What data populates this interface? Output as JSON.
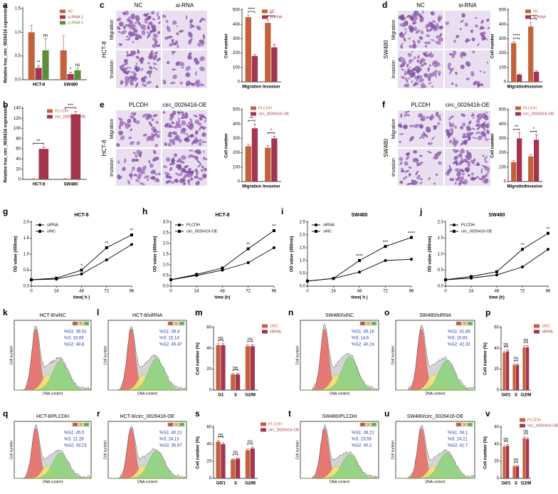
{
  "chart_data": [
    {
      "type": "bar",
      "label": "a",
      "ylabel": "Relative hsa_circ_0026416 expression",
      "categories": [
        "HCT-8",
        "SW480"
      ],
      "series": [
        {
          "name": "NC",
          "color": "#c2623c",
          "values": [
            1.0,
            0.62
          ],
          "errors": [
            0.15,
            0.3
          ]
        },
        {
          "name": "si-RNA 1",
          "color": "#a3354e",
          "values": [
            0.25,
            0.12
          ],
          "errors": [
            0.05,
            0.04
          ]
        },
        {
          "name": "si-RNA 2",
          "color": "#5c8c3c",
          "values": [
            0.62,
            0.2
          ],
          "errors": [
            0.25,
            0.05
          ]
        }
      ],
      "ylim": [
        0,
        1.5
      ],
      "yticks": [
        {
          "value": 0,
          "label": "0.0"
        },
        0.5,
        {
          "value": 1,
          "label": "1.0"
        },
        1.5
      ],
      "annotations": [
        "**",
        "ns",
        "*",
        "ns"
      ]
    },
    {
      "type": "bar",
      "label": "b",
      "ylabel": "Relative hsa_circ_0026416 expression",
      "categories": [
        "HCT-8",
        "SW480"
      ],
      "series": [
        {
          "name": "PLCDH",
          "color": "#c2623c",
          "values": [
            1,
            1
          ],
          "errors": [
            0.5,
            0.5
          ]
        },
        {
          "name": "circ_0026416-OE",
          "color": "#a3354e",
          "values": [
            60,
            128
          ],
          "errors": [
            4,
            6
          ]
        }
      ],
      "ylim": [
        0,
        140
      ],
      "yticks": [
        0,
        20,
        40,
        60,
        80,
        100,
        120,
        140
      ],
      "annotations": [
        "**",
        "***"
      ]
    },
    {
      "type": "micrograph",
      "label": "c",
      "columns": [
        "NC",
        "si-RNA"
      ],
      "rows": [
        "Migration",
        "Invasion"
      ],
      "cell_line": "HCT-8"
    },
    {
      "type": "bar",
      "ylabel": "Cell number",
      "categories": [
        "Migration",
        "Invasion"
      ],
      "series": [
        {
          "name": "NC",
          "color": "#c2623c",
          "values": [
            450,
            410
          ],
          "errors": [
            15,
            25
          ]
        },
        {
          "name": "si-RNA",
          "color": "#a3354e",
          "values": [
            180,
            240
          ],
          "errors": [
            10,
            20
          ]
        }
      ],
      "ylim": [
        0,
        500
      ],
      "yticks": [
        0,
        100,
        200,
        300,
        400,
        500
      ],
      "annotations": [
        "****",
        "**"
      ]
    },
    {
      "type": "micrograph",
      "label": "d",
      "columns": [
        "NC",
        "si-RNA"
      ],
      "rows": [
        "Migration",
        "Invasion"
      ],
      "cell_line": "SW480"
    },
    {
      "type": "bar",
      "ylabel": "Cell number",
      "categories": [
        "Migration",
        "Invasion"
      ],
      "series": [
        {
          "name": "NC",
          "color": "#c2623c",
          "values": [
            270,
            385
          ],
          "errors": [
            10,
            30
          ]
        },
        {
          "name": "si-RNA",
          "color": "#a3354e",
          "values": [
            50,
            70
          ],
          "errors": [
            5,
            8
          ]
        }
      ],
      "ylim": [
        0,
        500
      ],
      "yticks": [
        0,
        100,
        200,
        300,
        400,
        500
      ],
      "annotations": [
        "****",
        "****"
      ]
    },
    {
      "type": "micrograph",
      "label": "e",
      "columns": [
        "PLCDH",
        "circ_0026416-OE"
      ],
      "rows": [
        "Migration",
        "Invasion"
      ],
      "cell_line": "HCT-8"
    },
    {
      "type": "bar",
      "ylabel": "Cell number",
      "categories": [
        "Migration",
        "Invasion"
      ],
      "series": [
        {
          "name": "PLCDH",
          "color": "#c2623c",
          "values": [
            245,
            235
          ],
          "errors": [
            15,
            15
          ]
        },
        {
          "name": "circ_0026416-OE",
          "color": "#a3354e",
          "values": [
            370,
            300
          ],
          "errors": [
            30,
            15
          ]
        }
      ],
      "ylim": [
        0,
        500
      ],
      "yticks": [
        0,
        100,
        200,
        300,
        400,
        500
      ],
      "annotations": [
        "**",
        "*"
      ]
    },
    {
      "type": "micrograph",
      "label": "f",
      "columns": [
        "PLCDH",
        "circ_0026416-OE"
      ],
      "rows": [
        "Migration",
        "Invasion"
      ],
      "cell_line": "SW480"
    },
    {
      "type": "bar",
      "ylabel": "Cell number",
      "categories": [
        "Migration",
        "Invasion"
      ],
      "series": [
        {
          "name": "PLCDH",
          "color": "#c2623c",
          "values": [
            135,
            175
          ],
          "errors": [
            10,
            15
          ]
        },
        {
          "name": "circ_0026416-OE",
          "color": "#a3354e",
          "values": [
            300,
            290
          ],
          "errors": [
            40,
            35
          ]
        }
      ],
      "ylim": [
        0,
        500
      ],
      "yticks": [
        0,
        100,
        200,
        300,
        400,
        500
      ],
      "annotations": [
        "**",
        "*"
      ]
    },
    {
      "type": "line",
      "label": "g",
      "title": "HCT-8",
      "xlabel": "time( h )",
      "ylabel": "OD value (450nm)",
      "x": [
        0,
        24,
        48,
        72,
        96
      ],
      "xlim": [
        0,
        96
      ],
      "xticks": [
        0,
        24,
        48,
        72,
        96
      ],
      "ylim": [
        0,
        2
      ],
      "yticks": [
        {
          "value": 0,
          "label": "0.0"
        },
        0.5,
        {
          "value": 1,
          "label": "1.0"
        },
        1.5,
        {
          "value": 2,
          "label": "2.0"
        }
      ],
      "series": [
        {
          "name": "siRNA",
          "color": "#000000",
          "marker": "circle",
          "values": [
            0.2,
            0.22,
            0.38,
            0.82,
            1.3
          ]
        },
        {
          "name": "siNC",
          "color": "#000000",
          "marker": "square",
          "values": [
            0.2,
            0.25,
            0.5,
            1.2,
            1.6
          ]
        }
      ],
      "annotations": [
        null,
        null,
        "*",
        "**",
        "**"
      ]
    },
    {
      "type": "line",
      "label": "h",
      "title": "HCT-8",
      "xlabel": "time (h)",
      "ylabel": "OD value (450nm)",
      "x": [
        0,
        24,
        48,
        72,
        96
      ],
      "xlim": [
        0,
        96
      ],
      "xticks": [
        0,
        24,
        48,
        72,
        96
      ],
      "ylim": [
        0,
        3
      ],
      "yticks": [
        {
          "value": 0,
          "label": "0.0"
        },
        0.5,
        {
          "value": 1,
          "label": "1.0"
        },
        1.5,
        {
          "value": 2,
          "label": "2.0"
        },
        2.5,
        {
          "value": 3,
          "label": "3.0"
        }
      ],
      "series": [
        {
          "name": "PLCDH",
          "color": "#000000",
          "marker": "circle",
          "values": [
            0.3,
            0.5,
            0.75,
            1.1,
            1.8
          ]
        },
        {
          "name": "circ_0026416-OE",
          "color": "#000000",
          "marker": "square",
          "values": [
            0.3,
            0.55,
            0.85,
            1.75,
            2.6
          ]
        }
      ],
      "annotations": [
        null,
        null,
        null,
        "**",
        "**"
      ]
    },
    {
      "type": "line",
      "label": "i",
      "title": "SW480",
      "xlabel": "time( h )",
      "ylabel": "OD value (450nm)",
      "x": [
        0,
        24,
        48,
        72,
        96
      ],
      "xlim": [
        0,
        96
      ],
      "xticks": [
        0,
        24,
        48,
        72,
        96
      ],
      "ylim": [
        0,
        2.5
      ],
      "yticks": [
        {
          "value": 0,
          "label": "0.0"
        },
        0.5,
        {
          "value": 1,
          "label": "1.0"
        },
        1.5,
        {
          "value": 2,
          "label": "2.0"
        },
        2.5
      ],
      "series": [
        {
          "name": "siRNA",
          "color": "#000000",
          "marker": "circle",
          "values": [
            0.2,
            0.3,
            0.55,
            1.0,
            1.05
          ]
        },
        {
          "name": "siNC",
          "color": "#000000",
          "marker": "square",
          "values": [
            0.2,
            0.3,
            1.0,
            1.55,
            1.9
          ]
        }
      ],
      "annotations": [
        null,
        null,
        "****",
        "***",
        "****"
      ]
    },
    {
      "type": "line",
      "label": "j",
      "title": "SW480",
      "xlabel": "time (h)",
      "ylabel": "OD value (450nm)",
      "x": [
        0,
        24,
        48,
        72,
        96
      ],
      "xlim": [
        0,
        96
      ],
      "xticks": [
        0,
        24,
        48,
        72,
        96
      ],
      "ylim": [
        0,
        2
      ],
      "yticks": [
        {
          "value": 0,
          "label": "0.0"
        },
        0.5,
        {
          "value": 1,
          "label": "1.0"
        },
        1.5,
        {
          "value": 2,
          "label": "2.0"
        }
      ],
      "series": [
        {
          "name": "PLCDH",
          "color": "#000000",
          "marker": "circle",
          "values": [
            0.2,
            0.25,
            0.35,
            0.6,
            1.15
          ]
        },
        {
          "name": "circ_0026416-OE",
          "color": "#000000",
          "marker": "square",
          "values": [
            0.2,
            0.3,
            0.45,
            1.15,
            1.65
          ]
        }
      ],
      "annotations": [
        null,
        null,
        null,
        "**",
        "**"
      ]
    },
    {
      "type": "flow",
      "label": "k",
      "title": "HCT-8/siNC",
      "stats": [
        "%G1: 35.51",
        "%S: 15.69",
        "%G2: 48.8"
      ],
      "xlabel": "DNA content",
      "ylabel": "Cell number",
      "phases": [
        "G1",
        "S",
        "G2"
      ]
    },
    {
      "type": "flow",
      "label": "l",
      "title": "HCT-8/siRNA",
      "stats": [
        "%G1: 39.4",
        "%S: 15.14",
        "%G2: 45.47"
      ],
      "xlabel": "DNA content",
      "ylabel": "Cell number",
      "phases": [
        "G1",
        "S",
        "G2"
      ]
    },
    {
      "type": "bar",
      "label": "m",
      "ylabel": "Cell number (%)",
      "categories": [
        "G1",
        "S",
        "G2/M"
      ],
      "series": [
        {
          "name": "siNC",
          "color": "#c2623c",
          "values": [
            43,
            15,
            42
          ],
          "errors": [
            1.5,
            1,
            1.5
          ]
        },
        {
          "name": "siRNA",
          "color": "#a3354e",
          "values": [
            43,
            15,
            42
          ],
          "errors": [
            1.5,
            1,
            1.5
          ]
        }
      ],
      "ylim": [
        0,
        60
      ],
      "yticks": [
        0,
        20,
        40,
        60
      ],
      "annotations": [
        "ns",
        "ns",
        "ns"
      ]
    },
    {
      "type": "flow",
      "label": "n",
      "title": "SW480/siNC",
      "stats": [
        "%G1: 45.16",
        "%S: 14.6",
        "%G2: 40.24"
      ],
      "xlabel": "DNA content",
      "ylabel": "Cell number",
      "phases": [
        "G1",
        "S",
        "G2"
      ]
    },
    {
      "type": "flow",
      "label": "o",
      "title": "SW480/siRNA",
      "stats": [
        "%G1: 41.85",
        "%S: 15.83",
        "%G2: 42.32"
      ],
      "xlabel": "DNA content",
      "ylabel": "Cell number",
      "phases": [
        "G1",
        "S",
        "G2"
      ]
    },
    {
      "type": "bar",
      "label": "p",
      "ylabel": "Cell number (%)",
      "categories": [
        "G0/1",
        "S",
        "G2/M"
      ],
      "series": [
        {
          "name": "siNC",
          "color": "#c2623c",
          "values": [
            36,
            24,
            41
          ],
          "errors": [
            1.5,
            1,
            1.5
          ]
        },
        {
          "name": "siRNA",
          "color": "#a3354e",
          "values": [
            37,
            24,
            41
          ],
          "errors": [
            1.5,
            1,
            1.5
          ]
        }
      ],
      "ylim": [
        0,
        60
      ],
      "yticks": [
        0,
        20,
        40,
        60
      ],
      "annotations": [
        "ns",
        "ns",
        "ns"
      ]
    },
    {
      "type": "flow",
      "label": "q",
      "title": "HCT-8/PLCDH",
      "stats": [
        "%G1: 45.5",
        "%S: 21.26",
        "%G2: 33.23"
      ],
      "xlabel": "DNA content",
      "ylabel": "Cell number",
      "phases": [
        "G1",
        "S",
        "G2"
      ]
    },
    {
      "type": "flow",
      "label": "r",
      "title": "HCT-8/circ_0026416-OE",
      "stats": [
        "%G1: 40.21",
        "%S: 24.13",
        "%G2: 35.67"
      ],
      "xlabel": "DNA content",
      "ylabel": "Cell number",
      "phases": [
        "G1",
        "S",
        "G2"
      ]
    },
    {
      "type": "bar",
      "label": "s",
      "ylabel": "Cell number (%)",
      "categories": [
        "G0/1",
        "S",
        "G2/M"
      ],
      "series": [
        {
          "name": "PLCDH",
          "color": "#c2623c",
          "values": [
            43,
            22,
            33
          ],
          "errors": [
            1.5,
            1,
            1.5
          ]
        },
        {
          "name": "circ_0026416-OE",
          "color": "#a3354e",
          "values": [
            40,
            23,
            35
          ],
          "errors": [
            1.5,
            1,
            1.5
          ]
        }
      ],
      "ylim": [
        0,
        60
      ],
      "yticks": [
        0,
        20,
        40,
        60
      ],
      "annotations": [
        "ns",
        "ns",
        "ns"
      ]
    },
    {
      "type": "flow",
      "label": "t",
      "title": "SW480/PLCDH",
      "stats": [
        "%G1: 38.21",
        "%S: 23.59",
        "%G2: 40.2"
      ],
      "xlabel": "DNA content",
      "ylabel": "Cell number",
      "phases": [
        "G1",
        "S",
        "G2"
      ]
    },
    {
      "type": "flow",
      "label": "u",
      "title": "SW480/circ_0026416-OE",
      "stats": [
        "%G1: 34.1",
        "%S: 24.21",
        "%G2: 41.7"
      ],
      "xlabel": "DNA content",
      "ylabel": "Cell number",
      "phases": [
        "G1",
        "S",
        "G2"
      ]
    },
    {
      "type": "bar",
      "label": "v",
      "ylabel": "Cell number (%)",
      "categories": [
        "G0/1",
        "S",
        "G2/M"
      ],
      "series": [
        {
          "name": "PLCDH",
          "color": "#c2623c",
          "values": [
            37,
            14,
            47
          ],
          "errors": [
            1.5,
            1,
            1.5
          ]
        },
        {
          "name": "circ_0026416-OE",
          "color": "#a3354e",
          "values": [
            38,
            14,
            46
          ],
          "errors": [
            1.5,
            1,
            1.5
          ]
        }
      ],
      "ylim": [
        0,
        60
      ],
      "yticks": [
        0,
        20,
        40,
        60
      ],
      "annotations": [
        "ns",
        "ns",
        "ns"
      ]
    }
  ]
}
